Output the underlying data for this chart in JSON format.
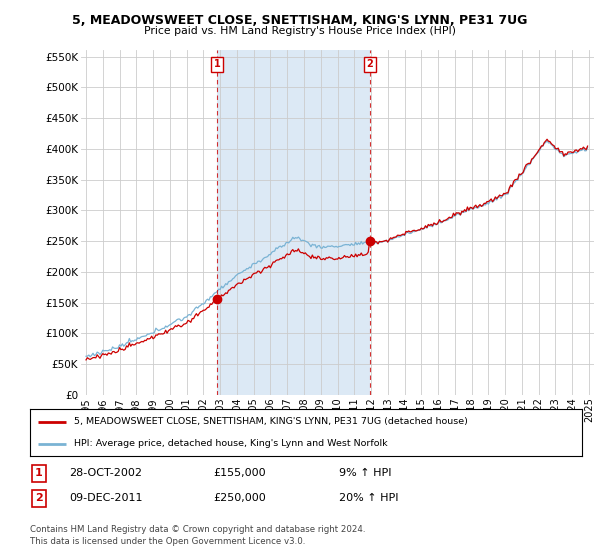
{
  "title": "5, MEADOWSWEET CLOSE, SNETTISHAM, KING'S LYNN, PE31 7UG",
  "subtitle": "Price paid vs. HM Land Registry's House Price Index (HPI)",
  "ylim": [
    0,
    560000
  ],
  "yticks": [
    0,
    50000,
    100000,
    150000,
    200000,
    250000,
    300000,
    350000,
    400000,
    450000,
    500000,
    550000
  ],
  "ytick_labels": [
    "£0",
    "£50K",
    "£100K",
    "£150K",
    "£200K",
    "£250K",
    "£300K",
    "£350K",
    "£400K",
    "£450K",
    "£500K",
    "£550K"
  ],
  "hpi_color": "#7ab3d4",
  "price_color": "#cc0000",
  "vline_color": "#cc0000",
  "marker1_date": 2002.82,
  "marker1_price": 155000,
  "marker2_date": 2011.94,
  "marker2_price": 250000,
  "legend_line1": "5, MEADOWSWEET CLOSE, SNETTISHAM, KING'S LYNN, PE31 7UG (detached house)",
  "legend_line2": "HPI: Average price, detached house, King's Lynn and West Norfolk",
  "table_row1": [
    "1",
    "28-OCT-2002",
    "£155,000",
    "9% ↑ HPI"
  ],
  "table_row2": [
    "2",
    "09-DEC-2011",
    "£250,000",
    "20% ↑ HPI"
  ],
  "footer": "Contains HM Land Registry data © Crown copyright and database right 2024.\nThis data is licensed under the Open Government Licence v3.0.",
  "bg_chart": "#ffffff",
  "bg_shade": "#dce9f5",
  "bg_figure": "#ffffff",
  "xstart": 1995,
  "xend": 2025
}
